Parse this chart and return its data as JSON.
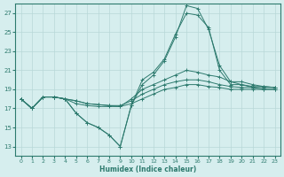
{
  "xlabel": "Humidex (Indice chaleur)",
  "background_color": "#d6eeee",
  "line_color": "#2d7a6e",
  "grid_color": "#b8d8d8",
  "xlim": [
    -0.5,
    23.5
  ],
  "ylim": [
    12.0,
    28.0
  ],
  "yticks": [
    13,
    15,
    17,
    19,
    21,
    23,
    25,
    27
  ],
  "xticks": [
    0,
    1,
    2,
    3,
    4,
    5,
    6,
    7,
    8,
    9,
    10,
    11,
    12,
    13,
    14,
    15,
    16,
    17,
    18,
    19,
    20,
    21,
    22,
    23
  ],
  "series": [
    [
      18.0,
      17.0,
      18.2,
      18.2,
      18.0,
      17.5,
      17.3,
      17.2,
      17.2,
      17.2,
      17.5,
      18.0,
      18.5,
      19.0,
      19.2,
      19.5,
      19.5,
      19.3,
      19.2,
      19.0,
      19.0,
      19.0,
      19.0,
      19.0
    ],
    [
      18.0,
      17.0,
      18.2,
      18.2,
      18.0,
      17.8,
      17.5,
      17.4,
      17.3,
      17.3,
      17.8,
      18.5,
      19.0,
      19.5,
      19.8,
      20.0,
      20.0,
      19.8,
      19.5,
      19.3,
      19.2,
      19.2,
      19.2,
      19.2
    ],
    [
      18.0,
      17.0,
      18.2,
      18.2,
      18.0,
      17.8,
      17.5,
      17.4,
      17.3,
      17.2,
      18.0,
      19.0,
      19.5,
      20.0,
      20.5,
      21.0,
      20.8,
      20.5,
      20.3,
      19.8,
      19.5,
      19.3,
      19.3,
      19.2
    ],
    [
      18.0,
      17.0,
      18.2,
      18.2,
      18.0,
      16.5,
      15.5,
      15.0,
      14.2,
      13.0,
      17.3,
      20.0,
      20.8,
      22.2,
      24.8,
      27.0,
      26.8,
      25.5,
      21.0,
      19.5,
      19.5,
      19.2,
      19.0,
      19.0
    ],
    [
      18.0,
      17.0,
      18.2,
      18.2,
      18.0,
      16.5,
      15.5,
      15.0,
      14.2,
      13.0,
      17.3,
      19.5,
      20.5,
      22.0,
      24.5,
      27.8,
      27.5,
      25.3,
      21.5,
      19.8,
      19.8,
      19.5,
      19.3,
      19.2
    ]
  ]
}
